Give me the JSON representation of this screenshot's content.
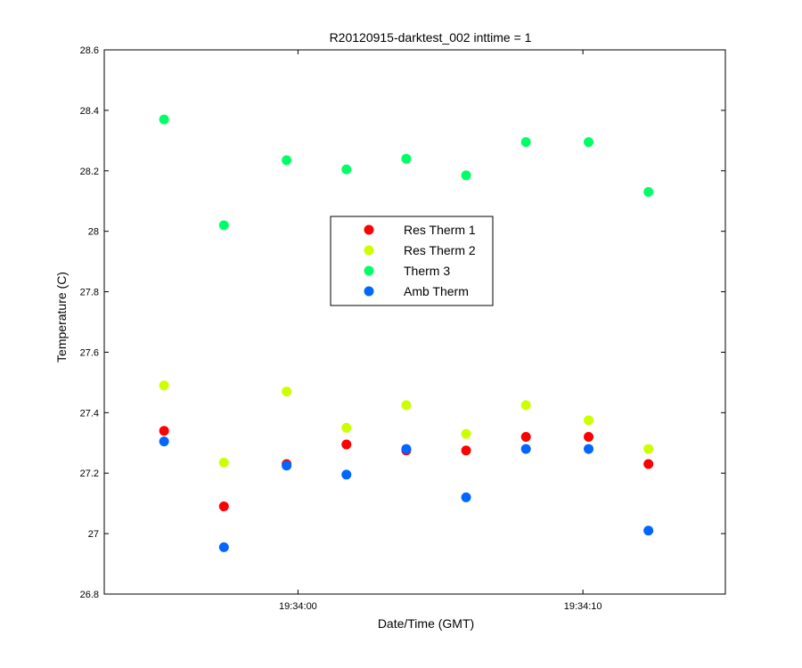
{
  "chart_data": {
    "type": "scatter",
    "title": "R20120915-darktest_002 inttime = 1",
    "xlabel": "Date/Time (GMT)",
    "ylabel": "Temperature (C)",
    "x_unit": "seconds after 19:34:00 (GMT)",
    "xlim": [
      -6.8,
      15.0
    ],
    "ylim": [
      26.8,
      28.6
    ],
    "x_ticks": [
      {
        "value": 0,
        "label": "19:34:00"
      },
      {
        "value": 10,
        "label": "19:34:10"
      }
    ],
    "y_ticks": [
      26.8,
      27,
      27.2,
      27.4,
      27.6,
      27.8,
      28,
      28.2,
      28.4,
      28.6
    ],
    "y_tick_labels": [
      "26.8",
      "27",
      "27.2",
      "27.4",
      "27.6",
      "27.8",
      "28",
      "28.2",
      "28.4",
      "28.6"
    ],
    "grid": false,
    "legend_position": "center",
    "x": [
      -4.7,
      -2.6,
      -0.4,
      1.7,
      3.8,
      5.9,
      8.0,
      10.2,
      12.3
    ],
    "series": [
      {
        "name": "Res Therm 1",
        "color": "#ff0000",
        "values": [
          27.34,
          27.09,
          27.23,
          27.295,
          27.275,
          27.275,
          27.32,
          27.32,
          27.23
        ]
      },
      {
        "name": "Res Therm 2",
        "color": "#ccff00",
        "values": [
          27.49,
          27.235,
          27.47,
          27.35,
          27.425,
          27.33,
          27.425,
          27.375,
          27.28
        ]
      },
      {
        "name": "Therm 3",
        "color": "#00ff66",
        "values": [
          28.37,
          28.02,
          28.235,
          28.205,
          28.24,
          28.185,
          28.295,
          28.295,
          28.13
        ]
      },
      {
        "name": "Amb Therm",
        "color": "#0066ff",
        "values": [
          27.305,
          26.955,
          27.225,
          27.195,
          27.28,
          27.12,
          27.28,
          27.28,
          27.01
        ]
      }
    ]
  }
}
